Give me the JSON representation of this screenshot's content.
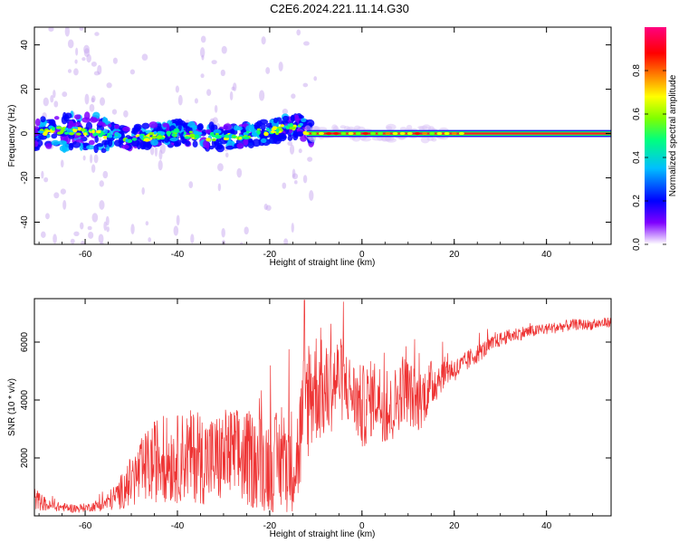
{
  "title": "C2E6.2024.221.11.14.G30",
  "colors": {
    "snr_line": "#ee3333",
    "rainbow": [
      "#ffffff",
      "#7f00ff",
      "#0000ff",
      "#00bfff",
      "#00ff7f",
      "#7fff00",
      "#ffff00",
      "#ff7f00",
      "#ff0000",
      "#ff007f"
    ]
  },
  "chart_data": [
    {
      "type": "heatmap",
      "xlabel": "Height of straight line (km)",
      "ylabel": "Frequency (Hz)",
      "xlim": [
        -71,
        54
      ],
      "ylim": [
        -50,
        48
      ],
      "x_ticks": [
        -60,
        -40,
        -20,
        0,
        20,
        40
      ],
      "y_ticks": [
        -40,
        -20,
        0,
        20,
        40
      ],
      "colorbar": {
        "label": "Normalized spectral amplitude",
        "range": [
          0.0,
          1.0
        ],
        "ticks": [
          "0.0",
          "0.2",
          "0.4",
          "0.6",
          "0.8"
        ]
      },
      "ridge": [
        {
          "x": -70,
          "y": 1.5
        },
        {
          "x": -60,
          "y": 1
        },
        {
          "x": -50,
          "y": -2
        },
        {
          "x": -40,
          "y": 0
        },
        {
          "x": -30,
          "y": -2
        },
        {
          "x": -20,
          "y": 1
        },
        {
          "x": -13,
          "y": 4
        },
        {
          "x": -12,
          "y": 0
        },
        {
          "x": 0,
          "y": 0
        },
        {
          "x": 20,
          "y": 0
        },
        {
          "x": 40,
          "y": 0
        },
        {
          "x": 54,
          "y": 0
        }
      ]
    },
    {
      "type": "line",
      "xlabel": "Height of straight line (km)",
      "ylabel": "SNR (10 * v/v)",
      "xlim": [
        -71,
        54
      ],
      "ylim": [
        0,
        7500
      ],
      "x_ticks": [
        -60,
        -40,
        -20,
        0,
        20,
        40
      ],
      "y_ticks": [
        2000,
        4000,
        6000
      ],
      "series": [
        {
          "x": [
            -71,
            -68,
            -65,
            -62,
            -59,
            -56,
            -53,
            -50,
            -47,
            -44,
            -41,
            -38,
            -35,
            -32,
            -29,
            -26,
            -23,
            -20,
            -17,
            -14,
            -12,
            -10,
            -8,
            -5,
            -2,
            0,
            3,
            6,
            9,
            12,
            15,
            18,
            21,
            24,
            27,
            30,
            34,
            38,
            42,
            46,
            50,
            54
          ],
          "values": [
            600,
            350,
            300,
            250,
            300,
            400,
            700,
            1200,
            1600,
            2000,
            1900,
            2100,
            2000,
            1900,
            2100,
            2000,
            1900,
            1800,
            1900,
            2000,
            4200,
            4500,
            4200,
            4800,
            4200,
            3700,
            4200,
            3500,
            4500,
            3900,
            4500,
            5000,
            5100,
            5500,
            5800,
            6100,
            6300,
            6400,
            6500,
            6600,
            6600,
            6700
          ],
          "spread": [
            400,
            200,
            150,
            150,
            150,
            250,
            500,
            900,
            1300,
            1500,
            1500,
            1600,
            1600,
            1600,
            1700,
            1700,
            1700,
            1700,
            1800,
            1900,
            2400,
            2000,
            1700,
            1500,
            1200,
            1500,
            1300,
            1300,
            1200,
            1100,
            900,
            500,
            400,
            350,
            300,
            250,
            250,
            200,
            200,
            200,
            180,
            180
          ]
        }
      ]
    }
  ]
}
